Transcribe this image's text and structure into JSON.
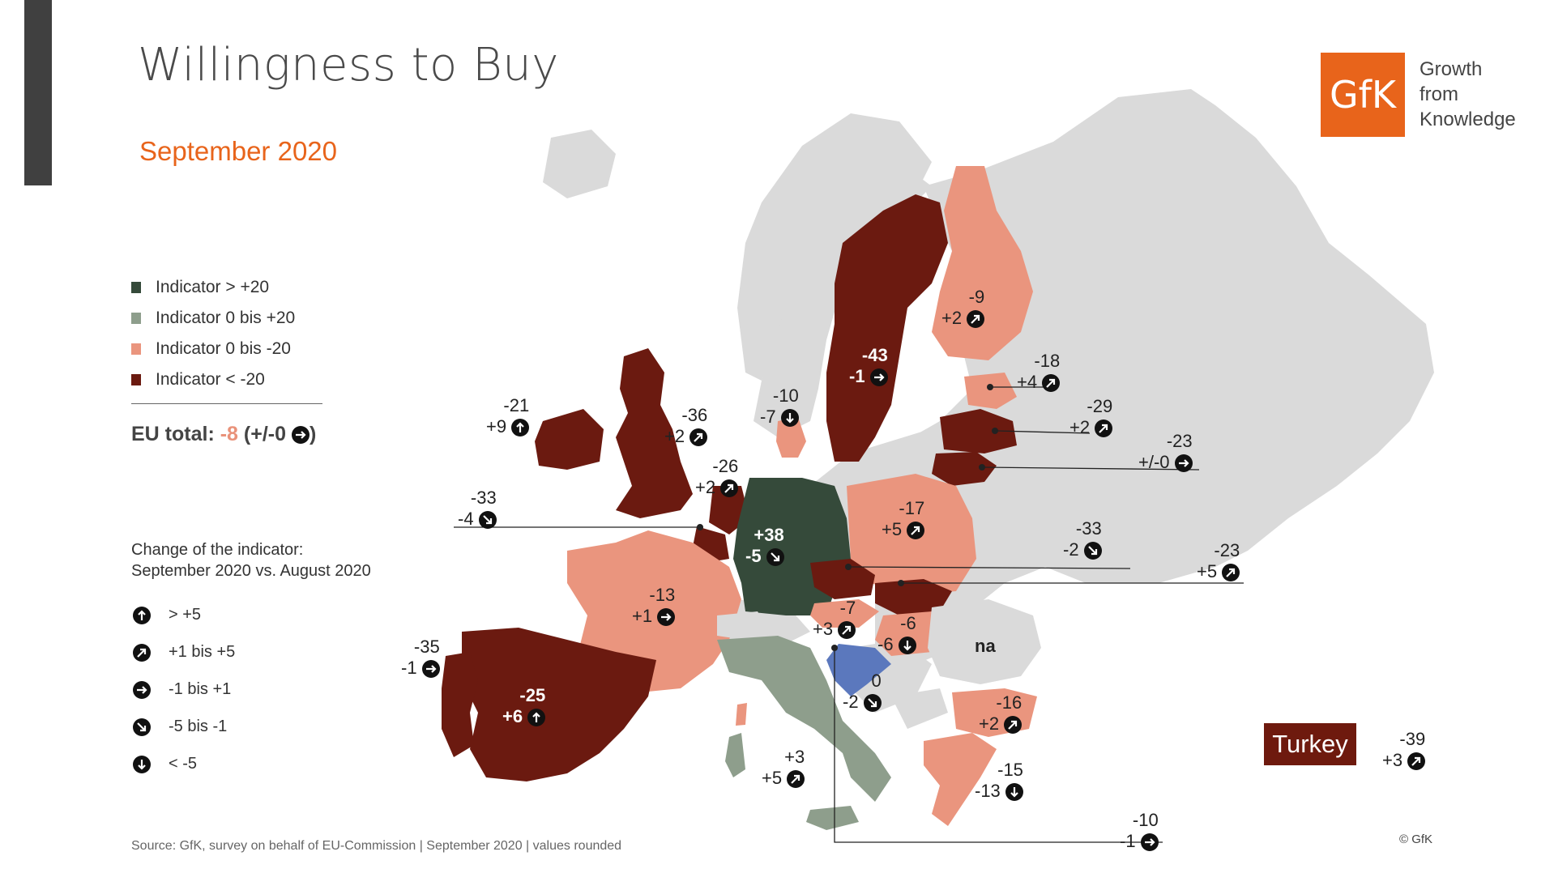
{
  "title": "Willingness to Buy",
  "subtitle": "September 2020",
  "logo": {
    "mark": "GfK",
    "tagline": [
      "Growth",
      "from",
      "Knowledge"
    ]
  },
  "colors": {
    "gt_20": "#354a3a",
    "pos_0_20": "#8e9e8c",
    "neg_0_20": "#ea957e",
    "lt_neg20": "#6b1a10",
    "na": "#dadada",
    "accent": "#e8641b",
    "croatia": "#5b78bd"
  },
  "legend": [
    {
      "label": "Indicator > +20",
      "color": "#354a3a"
    },
    {
      "label": "Indicator 0 bis +20",
      "color": "#8e9e8c"
    },
    {
      "label": "Indicator 0 bis -20",
      "color": "#ea957e"
    },
    {
      "label": "Indicator < -20",
      "color": "#6b1a10"
    }
  ],
  "eu_total": {
    "label": "EU total:",
    "value": "-8",
    "change": "(+/-0",
    "close": ")",
    "arrow": "right-arrow-icon"
  },
  "change_legend": {
    "title_line1": "Change of the indicator:",
    "title_line2": "September 2020 vs. August 2020",
    "items": [
      {
        "icon": "up-arrow-icon",
        "label": "> +5"
      },
      {
        "icon": "up-right-arrow-icon",
        "label": "+1 bis +5"
      },
      {
        "icon": "right-arrow-icon",
        "label": "-1 bis +1"
      },
      {
        "icon": "down-right-arrow-icon",
        "label": "-5 bis -1"
      },
      {
        "icon": "down-arrow-icon",
        "label": "< -5"
      }
    ]
  },
  "countries": [
    {
      "value": "-21",
      "change": "+9",
      "arrow": "up"
    },
    {
      "value": "-36",
      "change": "+2",
      "arrow": "up-right"
    },
    {
      "value": "-26",
      "change": "+2",
      "arrow": "up-right"
    },
    {
      "value": "-33",
      "change": "-4",
      "arrow": "down-right"
    },
    {
      "value": "+38",
      "change": "-5",
      "arrow": "down-right"
    },
    {
      "value": "-10",
      "change": "-7",
      "arrow": "down"
    },
    {
      "value": "-43",
      "change": "-1",
      "arrow": "right"
    },
    {
      "value": "-9",
      "change": "+2",
      "arrow": "up-right"
    },
    {
      "value": "-18",
      "change": "+4",
      "arrow": "up-right"
    },
    {
      "value": "-29",
      "change": "+2",
      "arrow": "up-right"
    },
    {
      "value": "-23",
      "change": "+/-0",
      "arrow": "right"
    },
    {
      "value": "-17",
      "change": "+5",
      "arrow": "up-right"
    },
    {
      "value": "-33",
      "change": "-2",
      "arrow": "down-right"
    },
    {
      "value": "-23",
      "change": "+5",
      "arrow": "up-right"
    },
    {
      "value": "-13",
      "change": "+1",
      "arrow": "right"
    },
    {
      "value": "-35",
      "change": "-1",
      "arrow": "right"
    },
    {
      "value": "-25",
      "change": "+6",
      "arrow": "up"
    },
    {
      "value": "-7",
      "change": "+3",
      "arrow": "up-right"
    },
    {
      "value": "-6",
      "change": "-6",
      "arrow": "down"
    },
    {
      "value": "na",
      "change": "",
      "arrow": ""
    },
    {
      "value": "0",
      "change": "-2",
      "arrow": "down-right"
    },
    {
      "value": "-16",
      "change": "+2",
      "arrow": "up-right"
    },
    {
      "value": "+3",
      "change": "+5",
      "arrow": "up-right"
    },
    {
      "value": "-15",
      "change": "-13",
      "arrow": "down"
    },
    {
      "value": "-10",
      "change": "-1",
      "arrow": "right"
    },
    {
      "value": "-39",
      "change": "+3",
      "arrow": "up-right"
    }
  ],
  "turkey": {
    "name": "Turkey"
  },
  "source": "Source: GfK, survey on behalf of EU-Commission | September 2020 | values rounded",
  "copyright": "© GfK"
}
